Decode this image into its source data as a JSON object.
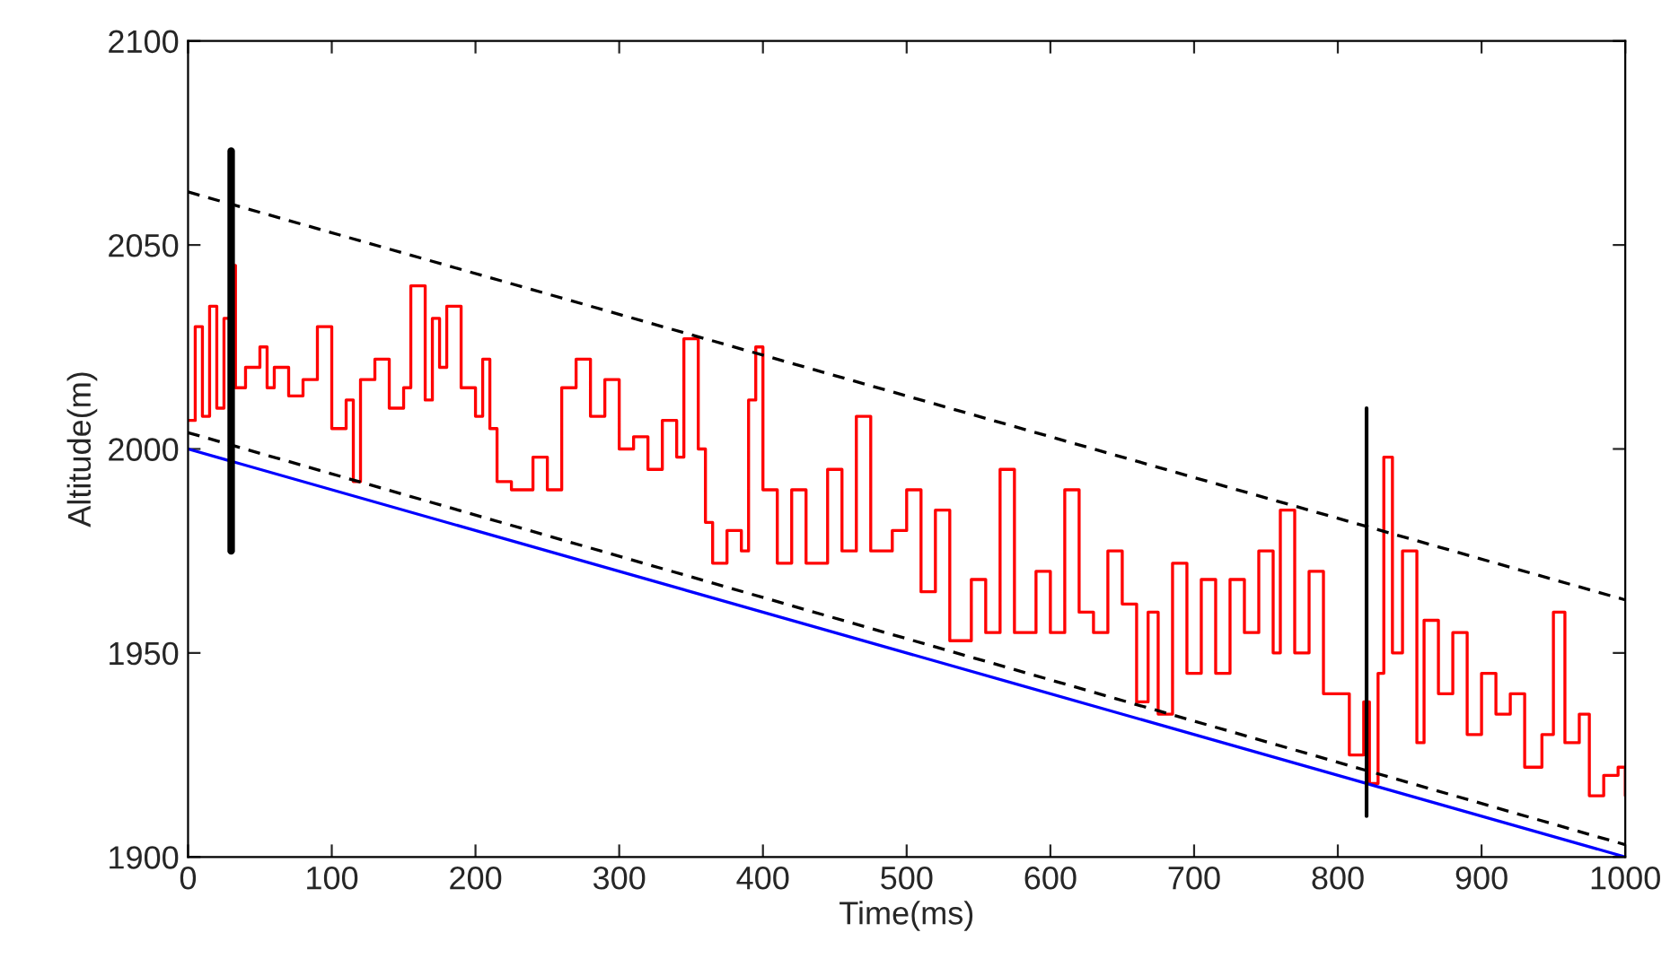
{
  "chart_data": {
    "type": "line",
    "xlabel": "Time(ms)",
    "ylabel": "Altitude(m)",
    "xlim": [
      0,
      1000
    ],
    "ylim": [
      1900,
      2100
    ],
    "xticks": [
      0,
      100,
      200,
      300,
      400,
      500,
      600,
      700,
      800,
      900,
      1000
    ],
    "yticks": [
      1900,
      1950,
      2000,
      2050,
      2100
    ],
    "grid": false,
    "legend": false,
    "series": [
      {
        "type": "step",
        "color": "#ff0000",
        "line_style": "solid",
        "x": [
          0,
          5,
          10,
          15,
          20,
          25,
          30,
          33,
          40,
          50,
          55,
          60,
          70,
          80,
          90,
          100,
          110,
          115,
          120,
          130,
          140,
          150,
          155,
          165,
          170,
          175,
          180,
          190,
          200,
          205,
          210,
          215,
          225,
          240,
          250,
          260,
          270,
          280,
          290,
          300,
          310,
          320,
          330,
          340,
          345,
          355,
          360,
          365,
          375,
          385,
          390,
          395,
          400,
          410,
          420,
          430,
          445,
          455,
          465,
          475,
          490,
          500,
          510,
          520,
          530,
          545,
          555,
          565,
          575,
          590,
          600,
          610,
          620,
          630,
          640,
          650,
          660,
          668,
          675,
          685,
          695,
          705,
          715,
          725,
          735,
          745,
          755,
          760,
          770,
          780,
          790,
          800,
          808,
          818,
          822,
          828,
          832,
          838,
          845,
          855,
          860,
          870,
          880,
          890,
          900,
          910,
          920,
          930,
          942,
          950,
          958,
          968,
          975,
          985,
          995,
          1000
        ],
        "values": [
          2007,
          2030,
          2008,
          2035,
          2010,
          2032,
          2045,
          2015,
          2020,
          2025,
          2015,
          2020,
          2013,
          2017,
          2030,
          2005,
          2012,
          1992,
          2017,
          2022,
          2010,
          2015,
          2040,
          2012,
          2032,
          2020,
          2035,
          2015,
          2008,
          2022,
          2005,
          1992,
          1990,
          1998,
          1990,
          2015,
          2022,
          2008,
          2017,
          2000,
          2003,
          1995,
          2007,
          1998,
          2027,
          2000,
          1982,
          1972,
          1980,
          1975,
          2012,
          2025,
          1990,
          1972,
          1990,
          1972,
          1995,
          1975,
          2008,
          1975,
          1980,
          1990,
          1965,
          1985,
          1953,
          1968,
          1955,
          1995,
          1955,
          1970,
          1955,
          1990,
          1960,
          1955,
          1975,
          1962,
          1938,
          1960,
          1935,
          1972,
          1945,
          1968,
          1945,
          1968,
          1955,
          1975,
          1950,
          1985,
          1950,
          1970,
          1940,
          1940,
          1925,
          1938,
          1918,
          1945,
          1998,
          1950,
          1975,
          1928,
          1958,
          1940,
          1955,
          1930,
          1945,
          1935,
          1940,
          1922,
          1930,
          1960,
          1928,
          1935,
          1915,
          1920,
          1922,
          1915
        ]
      },
      {
        "color": "#0000ff",
        "line_style": "solid",
        "x": [
          0,
          1000
        ],
        "values": [
          2000,
          1900
        ]
      },
      {
        "color": "#000000",
        "line_style": "dashed",
        "x": [
          0,
          1000
        ],
        "values": [
          2063,
          1963
        ]
      },
      {
        "color": "#000000",
        "line_style": "dashed",
        "x": [
          0,
          1000
        ],
        "values": [
          2004,
          1903
        ]
      },
      {
        "color": "#000000",
        "line_style": "solid",
        "x": [
          30,
          30
        ],
        "values": [
          1975,
          2073
        ]
      },
      {
        "color": "#000000",
        "line_style": "solid",
        "x": [
          820,
          820
        ],
        "values": [
          1910,
          2010
        ]
      }
    ]
  }
}
